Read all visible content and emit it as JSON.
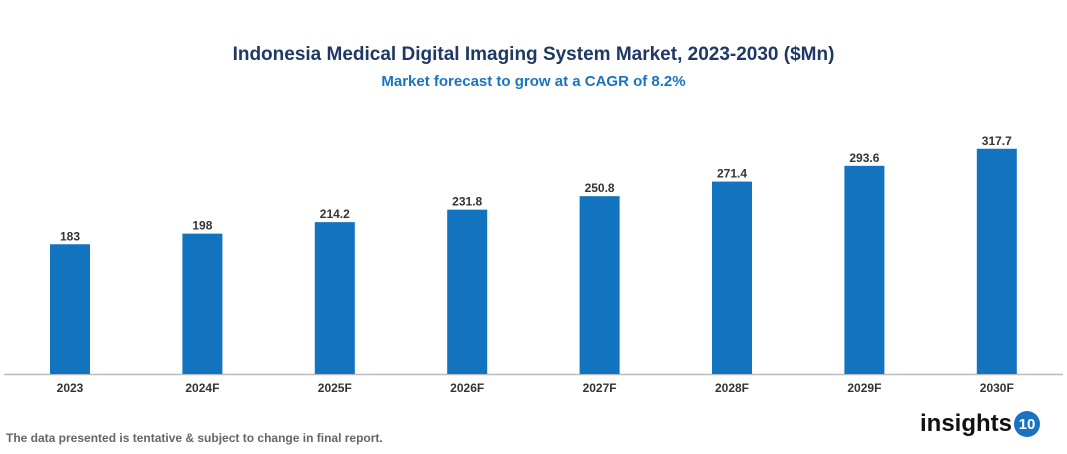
{
  "chart_data": {
    "type": "bar",
    "title": "Indonesia Medical Digital Imaging System Market, 2023-2030 ($Mn)",
    "subtitle": "Market forecast to grow at a CAGR of 8.2%",
    "categories": [
      "2023",
      "2024F",
      "2025F",
      "2026F",
      "2027F",
      "2028F",
      "2029F",
      "2030F"
    ],
    "values": [
      183,
      198,
      214.2,
      231.8,
      250.8,
      271.4,
      293.6,
      317.7
    ],
    "labels": [
      "183",
      "198",
      "214.2",
      "231.8",
      "250.8",
      "271.4",
      "293.6",
      "317.7"
    ],
    "ylim": [
      0,
      320
    ],
    "grid": false,
    "bar_color": "#1273be"
  },
  "footnote": "The data presented is tentative & subject to change in final report.",
  "logo": {
    "text": "insights",
    "badge": "10"
  }
}
